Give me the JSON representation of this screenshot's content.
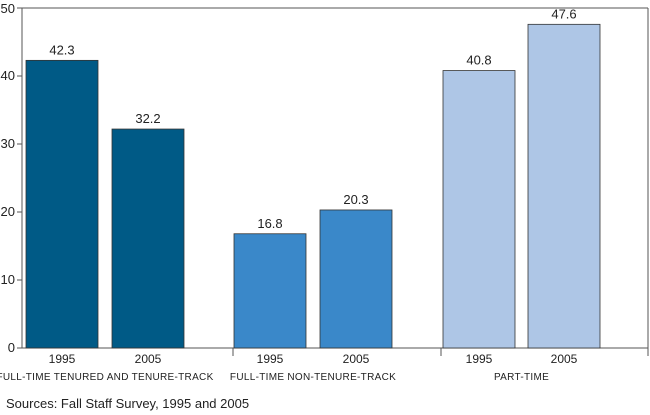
{
  "chart_data": {
    "type": "bar",
    "title": "",
    "xlabel": "",
    "ylabel": "",
    "ylim": [
      0,
      50
    ],
    "y_ticks": [
      0,
      10,
      20,
      30,
      40,
      50
    ],
    "grid": false,
    "groups": [
      {
        "label": "FULL-TIME TENURED AND TENURE-TRACK",
        "color": "#005a86",
        "bars": [
          {
            "year": "1995",
            "value": 42.3,
            "label": "42.3"
          },
          {
            "year": "2005",
            "value": 32.2,
            "label": "32.2"
          }
        ]
      },
      {
        "label": "FULL-TIME NON-TENURE-TRACK",
        "color": "#3a88c9",
        "bars": [
          {
            "year": "1995",
            "value": 16.8,
            "label": "16.8"
          },
          {
            "year": "2005",
            "value": 20.3,
            "label": "20.3"
          }
        ]
      },
      {
        "label": "PART-TIME",
        "color": "#aec6e6",
        "bars": [
          {
            "year": "1995",
            "value": 40.8,
            "label": "40.8"
          },
          {
            "year": "2005",
            "value": 47.6,
            "label": "47.6"
          }
        ]
      }
    ]
  },
  "source": "Sources: Fall Staff Survey, 1995 and 2005"
}
